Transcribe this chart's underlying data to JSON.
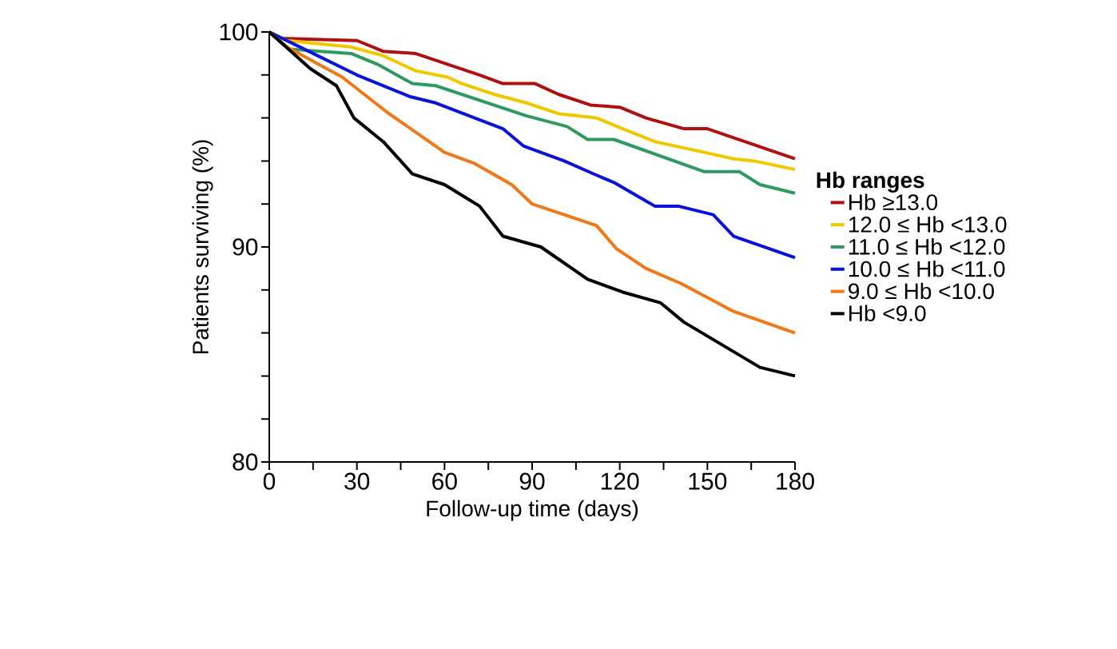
{
  "chart_data": {
    "type": "line",
    "xlabel": "Follow-up time (days)",
    "ylabel": "Patients surviving (%)",
    "legend_title": "Hb ranges",
    "xlim": [
      0,
      180
    ],
    "ylim": [
      80,
      100
    ],
    "xticks": [
      0,
      {
        "value": 15,
        "label": null
      },
      30,
      {
        "value": 45,
        "label": null
      },
      60,
      {
        "value": 75,
        "label": null
      },
      90,
      {
        "value": 105,
        "label": null
      },
      120,
      {
        "value": 135,
        "label": null
      },
      150,
      {
        "value": 165,
        "label": null
      },
      180
    ],
    "yticks": [
      80,
      {
        "value": 82,
        "label": null
      },
      {
        "value": 84,
        "label": null
      },
      {
        "value": 86,
        "label": null
      },
      {
        "value": 88,
        "label": null
      },
      90,
      {
        "value": 92,
        "label": null
      },
      {
        "value": 94,
        "label": null
      },
      {
        "value": 96,
        "label": null
      },
      {
        "value": 98,
        "label": null
      },
      100
    ],
    "grid": false,
    "legend": "right",
    "marker": "none",
    "line_style": "solid",
    "series": [
      {
        "name": "Hb ≥13.0",
        "color": "#b01010",
        "x": [
          0,
          4,
          30,
          39,
          50,
          61,
          72,
          80,
          91,
          99,
          110,
          120,
          129,
          142,
          150,
          180
        ],
        "values": [
          100,
          99.7,
          99.6,
          99.1,
          99.0,
          98.5,
          98.0,
          97.6,
          97.6,
          97.1,
          96.6,
          96.5,
          96.0,
          95.5,
          95.5,
          94.1
        ]
      },
      {
        "name": "12.0 ≤ Hb <13.0",
        "color": "#f0c800",
        "x": [
          0,
          6,
          28,
          39,
          50,
          61,
          66,
          77,
          88,
          99,
          112,
          121,
          132,
          149,
          159,
          166,
          180
        ],
        "values": [
          100,
          99.6,
          99.3,
          98.9,
          98.2,
          97.9,
          97.6,
          97.1,
          96.7,
          96.2,
          96.0,
          95.5,
          94.9,
          94.4,
          94.1,
          94.0,
          93.6
        ]
      },
      {
        "name": "11.0 ≤ Hb <12.0",
        "color": "#2e9a5e",
        "x": [
          0,
          7,
          28,
          37,
          49,
          57,
          88,
          102,
          109,
          118,
          149,
          161,
          168,
          180
        ],
        "values": [
          100,
          99.2,
          99.0,
          98.5,
          97.6,
          97.5,
          96.1,
          95.6,
          95.0,
          95.0,
          93.5,
          93.5,
          92.9,
          92.5
        ]
      },
      {
        "name": "10.0 ≤ Hb <11.0",
        "color": "#0a14d8",
        "x": [
          0,
          15,
          30,
          48,
          57,
          80,
          87,
          101,
          111,
          118,
          132,
          140,
          152,
          159,
          180
        ],
        "values": [
          100,
          99.0,
          98.0,
          97.0,
          96.7,
          95.5,
          94.7,
          94.0,
          93.4,
          93.0,
          91.9,
          91.9,
          91.5,
          90.5,
          89.5
        ]
      },
      {
        "name": "9.0 ≤ Hb <10.0",
        "color": "#f07818",
        "x": [
          0,
          6,
          25,
          40,
          60,
          70,
          83,
          90,
          112,
          119,
          129,
          141,
          159,
          180
        ],
        "values": [
          100,
          99.3,
          97.9,
          96.3,
          94.4,
          93.9,
          92.9,
          92.0,
          91.0,
          89.9,
          89.0,
          88.3,
          87.0,
          86.0
        ]
      },
      {
        "name": "Hb <9.0",
        "color": "#000000",
        "x": [
          0,
          14,
          23,
          29,
          39,
          49,
          60,
          72,
          80,
          93,
          109,
          121,
          134,
          142,
          168,
          180
        ],
        "values": [
          100,
          98.3,
          97.5,
          96.0,
          94.9,
          93.4,
          92.9,
          91.9,
          90.5,
          90.0,
          88.5,
          87.9,
          87.4,
          86.5,
          84.4,
          84.0
        ]
      }
    ]
  }
}
